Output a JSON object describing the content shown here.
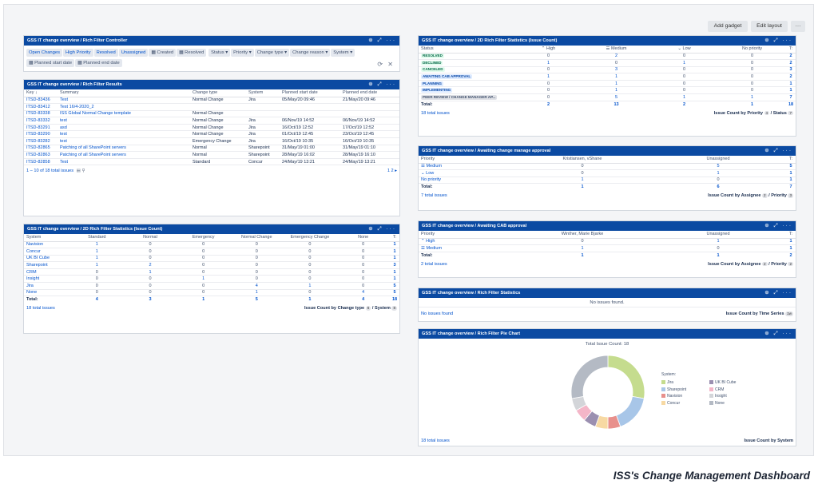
{
  "toolbar": {
    "add_gadget": "Add gadget",
    "edit_layout": "Edit layout",
    "more": "···"
  },
  "gadget_icons": "⊕ ⤢ ···",
  "controller": {
    "title": "GSS IT change overview / Rich Filter Controller",
    "chips_row1": [
      "Open Changes",
      "High Priority",
      "Resolved",
      "Unassigned",
      "Created",
      "Resolved"
    ],
    "dropdowns": [
      "Status ▾",
      "Priority ▾",
      "Change type ▾",
      "Change reason ▾",
      "System ▾"
    ],
    "chips_row2": [
      "Planned start date",
      "Planned end date"
    ]
  },
  "results": {
    "title": "GSS IT change overview / Rich Filter Results",
    "headers": [
      "Key ↓",
      "Summary",
      "Change type",
      "System",
      "Planned start date",
      "Planned end date"
    ],
    "rows": [
      [
        "ITSD-83436",
        "Test",
        "Normal Change",
        "Jira",
        "05/May/20 09:46",
        "21/May/20 09:46"
      ],
      [
        "ITSD-83412",
        "Test 16/4-2020_2",
        "",
        "",
        "",
        ""
      ],
      [
        "ITSD-83338",
        "ISS Global Normal Change template",
        "Normal Change",
        "",
        "",
        ""
      ],
      [
        "ITSD-83332",
        "test",
        "Normal Change",
        "Jira",
        "06/Nov/19 14:52",
        "06/Nov/19 14:52"
      ],
      [
        "ITSD-83291",
        "asd",
        "Normal Change",
        "Jira",
        "16/Oct/19 12:52",
        "17/Oct/19 12:52"
      ],
      [
        "ITSD-83290",
        "test",
        "Normal Change",
        "Jira",
        "01/Oct/19 12:45",
        "23/Oct/19 12:45"
      ],
      [
        "ITSD-83282",
        "test",
        "Emergency Change",
        "Jira",
        "16/Oct/19 10:35",
        "16/Oct/19 10:35"
      ],
      [
        "ITSD-82865",
        "Patching of all SharePoint servers",
        "Normal",
        "Sharepoint",
        "31/May/19 01:00",
        "31/May/19 01:10"
      ],
      [
        "ITSD-82863",
        "Patching of all SharePoint servers",
        "Normal",
        "Sharepoint",
        "28/May/19 16:02",
        "28/May/19 16:10"
      ],
      [
        "ITSD-82858",
        "Test",
        "Standard",
        "Concur",
        "24/May/19 13:21",
        "24/May/19 13:21"
      ]
    ],
    "footer_left": "1 – 10 of 18 total issues",
    "pager": "1 2 ▸"
  },
  "system_stats": {
    "title": "GSS IT change overview / 2D Rich Filter Statistics (Issue Count)",
    "headers": [
      "System",
      "Standard",
      "Normal",
      "Emergency",
      "Normal Change",
      "Emergency Change",
      "None",
      "T:"
    ],
    "rows": [
      [
        "Navision",
        "1",
        "0",
        "0",
        "0",
        "0",
        "0",
        "1"
      ],
      [
        "Concur",
        "1",
        "0",
        "0",
        "0",
        "0",
        "0",
        "1"
      ],
      [
        "UK BI Cube",
        "1",
        "0",
        "0",
        "0",
        "0",
        "0",
        "1"
      ],
      [
        "Sharepoint",
        "1",
        "2",
        "0",
        "0",
        "0",
        "0",
        "3"
      ],
      [
        "CRM",
        "0",
        "1",
        "0",
        "0",
        "0",
        "0",
        "1"
      ],
      [
        "Insight",
        "0",
        "0",
        "1",
        "0",
        "0",
        "0",
        "1"
      ],
      [
        "Jira",
        "0",
        "0",
        "0",
        "4",
        "1",
        "0",
        "5"
      ],
      [
        "None",
        "0",
        "0",
        "0",
        "1",
        "0",
        "4",
        "5"
      ],
      [
        "Total:",
        "4",
        "3",
        "1",
        "5",
        "1",
        "4",
        "18"
      ]
    ],
    "footer_left": "18 total issues",
    "footer_right": "Issue Count by Change type",
    "pill1": "6",
    "pill_mid": "/ System",
    "pill2": "8"
  },
  "status_stats": {
    "title": "GSS IT change overview / 2D Rich Filter Statistics (Issue Count)",
    "headers": [
      "Status",
      "⌃ High",
      "☰ Medium",
      "⌄ Low",
      "No priority",
      "T:"
    ],
    "rows": [
      [
        "RESOLVED",
        "0",
        "2",
        "0",
        "0",
        "2"
      ],
      [
        "DECLINED",
        "1",
        "0",
        "1",
        "0",
        "2"
      ],
      [
        "CANCELED",
        "0",
        "3",
        "0",
        "0",
        "3"
      ],
      [
        "AWAITING CAB APPROVAL",
        "1",
        "1",
        "0",
        "0",
        "2"
      ],
      [
        "PLANNING",
        "0",
        "1",
        "0",
        "0",
        "1"
      ],
      [
        "IMPLEMENTING",
        "0",
        "1",
        "0",
        "0",
        "1"
      ],
      [
        "PEER REVIEW / CHANGE MANAGER AP...",
        "0",
        "5",
        "1",
        "1",
        "7"
      ],
      [
        "Total:",
        "2",
        "13",
        "2",
        "1",
        "18"
      ]
    ],
    "status_colors": [
      "green",
      "green",
      "green",
      "blue",
      "blue",
      "blue",
      "grey"
    ],
    "footer_left": "18 total issues",
    "footer_right": "Issue Count by Priority",
    "pill1": "4",
    "pill_mid": "/ Status",
    "pill2": "7"
  },
  "manager_approval": {
    "title": "GSS IT change overview / Awaiting change manage approval",
    "headers": [
      "Priority",
      "Kristiansen, vShane",
      "Unassigned",
      "T:"
    ],
    "rows": [
      [
        "☰ Medium",
        "0",
        "5",
        "5"
      ],
      [
        "⌄ Low",
        "0",
        "1",
        "1"
      ],
      [
        "No priority",
        "1",
        "0",
        "1"
      ],
      [
        "Total:",
        "1",
        "6",
        "7"
      ]
    ],
    "footer_left": "7 total issues",
    "footer_right": "Issue Count by Assignee",
    "pill1": "2",
    "pill_mid": "/ Priority",
    "pill2": "3"
  },
  "cab_approval": {
    "title": "GSS IT change overview / Awaiting CAB approval",
    "headers": [
      "Priority",
      "Winther, Marie Bjarke",
      "Unassigned",
      "T:"
    ],
    "rows": [
      [
        "⌃ High",
        "0",
        "1",
        "1"
      ],
      [
        "☰ Medium",
        "1",
        "0",
        "1"
      ],
      [
        "Total:",
        "1",
        "1",
        "2"
      ]
    ],
    "footer_left": "2 total issues",
    "footer_right": "Issue Count by Assignee",
    "pill1": "2",
    "pill_mid": "/ Priority",
    "pill2": "2"
  },
  "time_stats": {
    "title": "GSS IT change overview / Rich Filter Statistics",
    "empty": "No issues found.",
    "footer_left": "No issues found",
    "footer_right": "Issue Count by Time Series",
    "pill1": "1w"
  },
  "pie": {
    "title": "GSS IT change overview / Rich Filter Pie Chart",
    "total_label": "Total Issue Count: 18",
    "legend_title": "System:",
    "footer_left": "18 total issues",
    "footer_right": "Issue Count by System",
    "colors": {
      "Jira": "#c5dc8e",
      "Sharepoint": "#a8c6e8",
      "Navision": "#e8908c",
      "Concur": "#f7d9a3",
      "UK BI Cube": "#9b8fb0",
      "CRM": "#f4b6c8",
      "Insight": "#d3d5d9",
      "None": "#b4bac4"
    }
  },
  "chart_data": {
    "type": "pie",
    "title": "Total Issue Count: 18",
    "series": [
      {
        "name": "Jira",
        "value": 5
      },
      {
        "name": "Sharepoint",
        "value": 3
      },
      {
        "name": "Navision",
        "value": 1
      },
      {
        "name": "Concur",
        "value": 1
      },
      {
        "name": "UK BI Cube",
        "value": 1
      },
      {
        "name": "CRM",
        "value": 1
      },
      {
        "name": "Insight",
        "value": 1
      },
      {
        "name": "None",
        "value": 5
      }
    ],
    "legend": "right"
  },
  "caption": "ISS's Change Management Dashboard"
}
